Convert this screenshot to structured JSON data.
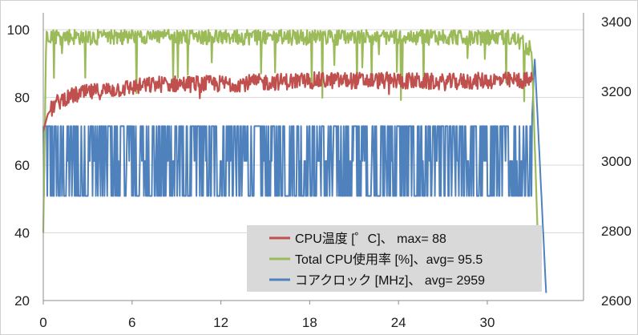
{
  "chart_data": {
    "type": "line",
    "x": {
      "ticks": [
        0,
        6,
        12,
        18,
        24,
        30
      ],
      "lim": [
        0,
        36.5
      ]
    },
    "y_left": {
      "ticks": [
        20,
        40,
        60,
        80,
        100
      ],
      "lim": [
        20,
        105
      ]
    },
    "y_right": {
      "ticks": [
        2600,
        2800,
        3000,
        3200,
        3400
      ],
      "lim": [
        2600,
        3425
      ]
    },
    "grid": "horizontal",
    "legend_position": "bottom-right",
    "series": [
      {
        "name": "CPU温度 [゜C]、 max= 88",
        "axis": "left",
        "color": "#c0504d",
        "points": [
          [
            0,
            70
          ],
          [
            0.3,
            75
          ],
          [
            0.8,
            78
          ],
          [
            1.5,
            80
          ],
          [
            2.5,
            81
          ],
          [
            4,
            82
          ],
          [
            6,
            83
          ],
          [
            8,
            84
          ],
          [
            10,
            84
          ],
          [
            12,
            84
          ],
          [
            15,
            84.5
          ],
          [
            18,
            85
          ],
          [
            21,
            85
          ],
          [
            24,
            85
          ],
          [
            27,
            84.5
          ],
          [
            30,
            85
          ],
          [
            33,
            85
          ],
          [
            33.1,
            86
          ]
        ],
        "noise": 2.5
      },
      {
        "name": "Total CPU使用率 [%]、avg= 95.5",
        "axis": "left",
        "color": "#9bbb59",
        "points": [
          [
            0,
            40
          ],
          [
            0.2,
            99
          ],
          [
            1,
            98
          ],
          [
            4,
            98
          ],
          [
            8,
            98.5
          ],
          [
            12,
            98
          ],
          [
            16,
            98
          ],
          [
            20,
            98
          ],
          [
            24,
            98
          ],
          [
            28,
            98
          ],
          [
            31,
            98
          ],
          [
            32,
            97
          ],
          [
            33,
            94
          ],
          [
            33.4,
            40
          ],
          [
            33.5,
            20
          ]
        ],
        "noise": 2.5
      },
      {
        "name": "コアクロック [MHz]、 avg= 2959",
        "axis": "right",
        "color": "#4f81bd",
        "points": [
          [
            0,
            3100
          ],
          [
            33,
            3100
          ],
          [
            33.2,
            3300
          ],
          [
            33.6,
            2950
          ],
          [
            34,
            2600
          ]
        ],
        "levels": [
          2900,
          3000,
          3100
        ]
      }
    ]
  }
}
